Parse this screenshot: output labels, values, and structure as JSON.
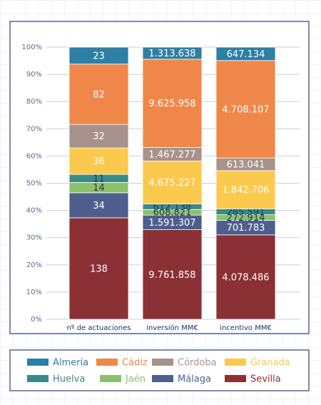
{
  "chart_data": {
    "type": "stacked_bar_100",
    "categories": [
      "nº de actuaciones",
      "inversión MM€",
      "incentivo MM€"
    ],
    "ylim": [
      0,
      100
    ],
    "yticks": [
      {
        "value": 0,
        "label": "0%"
      },
      {
        "value": 10,
        "label": "10%"
      },
      {
        "value": 20,
        "label": "20%"
      },
      {
        "value": 30,
        "label": "30%"
      },
      {
        "value": 40,
        "label": "40%"
      },
      {
        "value": 50,
        "label": "50%"
      },
      {
        "value": 60,
        "label": "60%"
      },
      {
        "value": 70,
        "label": "70%"
      },
      {
        "value": 80,
        "label": "80%"
      },
      {
        "value": 90,
        "label": "90%"
      },
      {
        "value": 100,
        "label": "100%"
      }
    ],
    "grid": true,
    "legend": "bottom",
    "series": [
      {
        "name": "Almería",
        "color": "#2e7fa6",
        "values": [
          23,
          1313638,
          647134
        ],
        "value_labels": [
          "23",
          "1.313.638",
          "647.134"
        ]
      },
      {
        "name": "Cádiz",
        "color": "#f0874a",
        "values": [
          82,
          9625958,
          4708107
        ],
        "value_labels": [
          "82",
          "9.625.958",
          "4.708.107"
        ]
      },
      {
        "name": "Córdoba",
        "color": "#a8928c",
        "values": [
          32,
          1467277,
          613041
        ],
        "value_labels": [
          "32",
          "1.467.277",
          "613.041"
        ]
      },
      {
        "name": "Granada",
        "color": "#fbc94d",
        "values": [
          36,
          4675227,
          1842706
        ],
        "value_labels": [
          "36",
          "4.675.227",
          "1.842.706"
        ]
      },
      {
        "name": "Huelva",
        "color": "#3c8a86",
        "values": [
          11,
          612138,
          285591
        ],
        "value_labels": [
          "11",
          "612.138",
          "285.591"
        ]
      },
      {
        "name": "Jaén",
        "color": "#8cc06a",
        "values": [
          14,
          608821,
          272914
        ],
        "value_labels": [
          "14",
          "608.821",
          "272.914"
        ]
      },
      {
        "name": "Málaga",
        "color": "#4e5f8e",
        "values": [
          34,
          1591307,
          701783
        ],
        "value_labels": [
          "34",
          "1.591.307",
          "701.783"
        ]
      },
      {
        "name": "Sevilla",
        "color": "#8b3035",
        "values": [
          138,
          9761858,
          4078486
        ],
        "value_labels": [
          "138",
          "9.761.858",
          "4.078.486"
        ]
      }
    ]
  }
}
